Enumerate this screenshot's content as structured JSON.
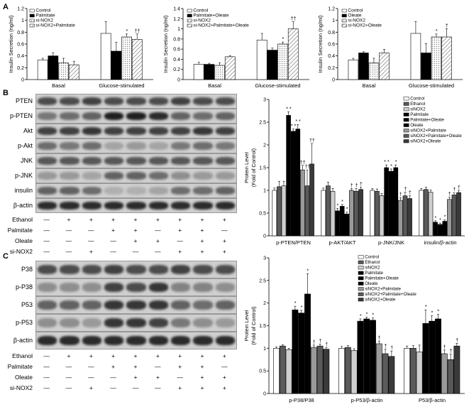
{
  "panel_letters": {
    "a": "A",
    "b": "B",
    "c": "C"
  },
  "colors": {
    "white": "#ffffff",
    "black": "#000000",
    "lightgray": "#cfcfcf",
    "midgray": "#9a9a9a",
    "darkgray": "#5a5a5a",
    "charcoal": "#3a3a3a",
    "hatch": "#8c8c8c",
    "dots": "#808080"
  },
  "chart_data": [
    {
      "id": "A1",
      "type": "bar",
      "ylabel": "Insulin Secretion (ng/ml)",
      "ylim": [
        0,
        1.2
      ],
      "yticks": [
        "0",
        "0.2",
        "0.4",
        "0.6",
        "0.8",
        "1",
        "1.2"
      ],
      "categories": [
        "Basal",
        "Glucose-stimulated"
      ],
      "legend": [
        "Control",
        "Palmitate",
        "si-NOX2",
        "si-NOX2+Palmitate"
      ],
      "series": [
        {
          "name": "Control",
          "values": [
            0.33,
            0.78
          ],
          "err": [
            0.03,
            0.2
          ],
          "fill": "white"
        },
        {
          "name": "Palmitate",
          "values": [
            0.4,
            0.48
          ],
          "err": [
            0.05,
            0.15
          ],
          "fill": "black"
        },
        {
          "name": "si-NOX2",
          "values": [
            0.28,
            0.72
          ],
          "err": [
            0.08,
            0.05
          ],
          "fill": "dots"
        },
        {
          "name": "si-NOX2+Palmitate",
          "values": [
            0.25,
            0.68
          ],
          "err": [
            0.06,
            0.09
          ],
          "fill": "hatch"
        }
      ],
      "annotations": [
        {
          "cat": 1,
          "ser": 2,
          "text": "*"
        },
        {
          "cat": 1,
          "ser": 3,
          "text": "††"
        }
      ]
    },
    {
      "id": "A2",
      "type": "bar",
      "ylabel": "Insulin Secretion (ng/ml)",
      "ylim": [
        0,
        1.4
      ],
      "yticks": [
        "0",
        "0.2",
        "0.4",
        "0.6",
        "0.8",
        "1",
        "1.2",
        "1.4"
      ],
      "categories": [
        "Basal",
        "Glucose-stimulated"
      ],
      "legend": [
        "Control",
        "Palmitate+Oleate",
        "si-NOX2",
        "si-NOX2+Palmitate+Oleate"
      ],
      "series": [
        {
          "name": "Control",
          "values": [
            0.3,
            0.78
          ],
          "err": [
            0.04,
            0.13
          ],
          "fill": "white"
        },
        {
          "name": "Palmitate+Oleate",
          "values": [
            0.3,
            0.58
          ],
          "err": [
            0.02,
            0.04
          ],
          "fill": "black"
        },
        {
          "name": "si-NOX2",
          "values": [
            0.28,
            0.7
          ],
          "err": [
            0.05,
            0.04
          ],
          "fill": "dots"
        },
        {
          "name": "si-NOX2+Palmitate+Oleate",
          "values": [
            0.45,
            1.0
          ],
          "err": [
            0.02,
            0.14
          ],
          "fill": "hatch"
        }
      ],
      "annotations": [
        {
          "cat": 1,
          "ser": 2,
          "text": "*"
        },
        {
          "cat": 1,
          "ser": 3,
          "text": "††"
        }
      ]
    },
    {
      "id": "A3",
      "type": "bar",
      "ylabel": "Insulin Secretion (ng/ml)",
      "ylim": [
        0,
        1.2
      ],
      "yticks": [
        "0",
        "0.2",
        "0.4",
        "0.6",
        "0.8",
        "1",
        "1.2"
      ],
      "categories": [
        "Basal",
        "Glucose-stimulated"
      ],
      "legend": [
        "Control",
        "Oleate",
        "si-NOX2",
        "si-NOX2+Oleate"
      ],
      "series": [
        {
          "name": "Control",
          "values": [
            0.33,
            0.78
          ],
          "err": [
            0.03,
            0.2
          ],
          "fill": "white"
        },
        {
          "name": "Oleate",
          "values": [
            0.45,
            0.45
          ],
          "err": [
            0.02,
            0.16
          ],
          "fill": "black"
        },
        {
          "name": "si-NOX2",
          "values": [
            0.28,
            0.72
          ],
          "err": [
            0.08,
            0.05
          ],
          "fill": "dots"
        },
        {
          "name": "si-NOX2+Oleate",
          "values": [
            0.45,
            0.72
          ],
          "err": [
            0.06,
            0.14
          ],
          "fill": "hatch"
        }
      ],
      "annotations": [
        {
          "cat": 1,
          "ser": 2,
          "text": "*"
        },
        {
          "cat": 1,
          "ser": 3,
          "text": "†"
        }
      ]
    },
    {
      "id": "B",
      "type": "bar",
      "ylabel": "Protein Level\n(Fold of Control)",
      "ylim": [
        0,
        3
      ],
      "yticks": [
        "0",
        "0.5",
        "1",
        "1.5",
        "2",
        "2.5",
        "3"
      ],
      "categories": [
        "p-PTEN/PTEN",
        "p-AKT/AKT",
        "p-JNK/JNK",
        "insulin/β-actin"
      ],
      "legend": [
        "Control",
        "Ethanol",
        "siNOX2",
        "Palmitate",
        "Palmitate+Oleate",
        "Oleate",
        "siNOX2+Palmitate",
        "siNOX2+Palmitate+Oleate",
        "siNOX2+Oleate"
      ],
      "series": [
        {
          "name": "Control",
          "values": [
            1.0,
            1.0,
            1.0,
            1.0
          ],
          "err": [
            0.05,
            0.05,
            0.04,
            0.04
          ],
          "fill": "white"
        },
        {
          "name": "Ethanol",
          "values": [
            1.08,
            1.1,
            0.98,
            1.02
          ],
          "err": [
            0.12,
            0.08,
            0.05,
            0.05
          ],
          "fill": "darkgray"
        },
        {
          "name": "siNOX2",
          "values": [
            1.1,
            0.98,
            0.88,
            0.96
          ],
          "err": [
            0.1,
            0.06,
            0.05,
            0.05
          ],
          "fill": "lightgray"
        },
        {
          "name": "Palmitate",
          "values": [
            2.65,
            0.55,
            1.5,
            0.3
          ],
          "err": [
            0.08,
            0.05,
            0.06,
            0.03
          ],
          "fill": "black"
        },
        {
          "name": "Palmitate+Oleate",
          "values": [
            2.3,
            0.65,
            1.42,
            0.25
          ],
          "err": [
            0.05,
            0.04,
            0.05,
            0.03
          ],
          "fill": "black"
        },
        {
          "name": "Oleate",
          "values": [
            2.35,
            0.48,
            1.5,
            0.32
          ],
          "err": [
            0.1,
            0.04,
            0.06,
            0.03
          ],
          "fill": "black"
        },
        {
          "name": "siNOX2+Palmitate",
          "values": [
            1.45,
            1.0,
            0.78,
            0.8
          ],
          "err": [
            0.1,
            0.04,
            0.06,
            0.05
          ],
          "fill": "midgray"
        },
        {
          "name": "siNOX2+Palmitate+Oleate",
          "values": [
            1.1,
            0.98,
            0.88,
            0.9
          ],
          "err": [
            0.35,
            0.06,
            0.08,
            0.05
          ],
          "fill": "darkgray"
        },
        {
          "name": "siNOX2+Oleate",
          "values": [
            1.58,
            1.02,
            0.82,
            0.95
          ],
          "err": [
            0.45,
            0.05,
            0.06,
            0.05
          ],
          "fill": "charcoal"
        }
      ],
      "annotations": [
        {
          "cat": 0,
          "ser": 3,
          "text": "* *"
        },
        {
          "cat": 0,
          "ser": 4,
          "text": "* *"
        },
        {
          "cat": 0,
          "ser": 5,
          "text": "* *"
        },
        {
          "cat": 0,
          "ser": 6,
          "text": "††"
        },
        {
          "cat": 0,
          "ser": 7,
          "text": "††"
        },
        {
          "cat": 0,
          "ser": 8,
          "text": "††"
        },
        {
          "cat": 1,
          "ser": 3,
          "text": "*"
        },
        {
          "cat": 1,
          "ser": 4,
          "text": "*"
        },
        {
          "cat": 1,
          "ser": 5,
          "text": "*"
        },
        {
          "cat": 1,
          "ser": 6,
          "text": "†"
        },
        {
          "cat": 1,
          "ser": 7,
          "text": "†"
        },
        {
          "cat": 1,
          "ser": 8,
          "text": "†"
        },
        {
          "cat": 2,
          "ser": 3,
          "text": "* *"
        },
        {
          "cat": 2,
          "ser": 4,
          "text": "*"
        },
        {
          "cat": 2,
          "ser": 5,
          "text": "*"
        },
        {
          "cat": 2,
          "ser": 6,
          "text": "†"
        },
        {
          "cat": 2,
          "ser": 7,
          "text": "†"
        },
        {
          "cat": 2,
          "ser": 8,
          "text": "†"
        },
        {
          "cat": 3,
          "ser": 3,
          "text": "*"
        },
        {
          "cat": 3,
          "ser": 4,
          "text": "*"
        },
        {
          "cat": 3,
          "ser": 5,
          "text": "*"
        },
        {
          "cat": 3,
          "ser": 6,
          "text": "†"
        },
        {
          "cat": 3,
          "ser": 7,
          "text": "†"
        },
        {
          "cat": 3,
          "ser": 8,
          "text": "†"
        }
      ]
    },
    {
      "id": "C",
      "type": "bar",
      "ylabel": "Protein Level\n(Fold of Control)",
      "ylim": [
        0,
        3
      ],
      "yticks": [
        "0",
        "0.5",
        "1",
        "1.5",
        "2",
        "2.5",
        "3"
      ],
      "categories": [
        "p-P38/P38",
        "p-P53/β-actin",
        "P53/β-actin"
      ],
      "legend": [
        "Control",
        "Ethanol",
        "siNOX2",
        "Palmitate",
        "Palmitate+Oleate",
        "Oleate",
        "siNOX2+Palmitate",
        "siNOX2+Palmitate+Oleate",
        "siNOX2+Oleate"
      ],
      "series": [
        {
          "name": "Control",
          "values": [
            1.0,
            1.0,
            1.0
          ],
          "err": [
            0.03,
            0.04,
            0.05
          ],
          "fill": "white"
        },
        {
          "name": "Ethanol",
          "values": [
            1.05,
            1.02,
            1.0
          ],
          "err": [
            0.03,
            0.04,
            0.06
          ],
          "fill": "darkgray"
        },
        {
          "name": "siNOX2",
          "values": [
            0.97,
            0.95,
            0.92
          ],
          "err": [
            0.03,
            0.04,
            0.15
          ],
          "fill": "lightgray"
        },
        {
          "name": "Palmitate",
          "values": [
            1.85,
            1.6,
            1.55
          ],
          "err": [
            0.08,
            0.05,
            0.3
          ],
          "fill": "black"
        },
        {
          "name": "Palmitate+Oleate",
          "values": [
            1.78,
            1.65,
            1.6
          ],
          "err": [
            0.06,
            0.04,
            0.12
          ],
          "fill": "black"
        },
        {
          "name": "Oleate",
          "values": [
            2.2,
            1.62,
            1.65
          ],
          "err": [
            0.45,
            0.05,
            0.1
          ],
          "fill": "black"
        },
        {
          "name": "siNOX2+Palmitate",
          "values": [
            1.02,
            1.1,
            0.88
          ],
          "err": [
            0.05,
            0.06,
            0.08
          ],
          "fill": "midgray"
        },
        {
          "name": "siNOX2+Palmitate+Oleate",
          "values": [
            1.05,
            0.88,
            0.75
          ],
          "err": [
            0.04,
            0.1,
            0.12
          ],
          "fill": "darkgray"
        },
        {
          "name": "siNOX2+Oleate",
          "values": [
            0.98,
            0.82,
            1.05
          ],
          "err": [
            0.04,
            0.12,
            0.06
          ],
          "fill": "charcoal"
        }
      ],
      "annotations": [
        {
          "cat": 0,
          "ser": 3,
          "text": "*"
        },
        {
          "cat": 0,
          "ser": 4,
          "text": "*"
        },
        {
          "cat": 0,
          "ser": 5,
          "text": "*"
        },
        {
          "cat": 0,
          "ser": 6,
          "text": "†"
        },
        {
          "cat": 0,
          "ser": 7,
          "text": "†"
        },
        {
          "cat": 0,
          "ser": 8,
          "text": "†"
        },
        {
          "cat": 1,
          "ser": 3,
          "text": "*"
        },
        {
          "cat": 1,
          "ser": 4,
          "text": "*"
        },
        {
          "cat": 1,
          "ser": 5,
          "text": "*"
        },
        {
          "cat": 1,
          "ser": 6,
          "text": "†"
        },
        {
          "cat": 1,
          "ser": 7,
          "text": "†"
        },
        {
          "cat": 1,
          "ser": 8,
          "text": "†"
        },
        {
          "cat": 2,
          "ser": 3,
          "text": "*"
        },
        {
          "cat": 2,
          "ser": 4,
          "text": "*"
        },
        {
          "cat": 2,
          "ser": 5,
          "text": "*"
        },
        {
          "cat": 2,
          "ser": 6,
          "text": "†"
        },
        {
          "cat": 2,
          "ser": 7,
          "text": "†"
        },
        {
          "cat": 2,
          "ser": 8,
          "text": "†"
        }
      ]
    }
  ],
  "blot_b": {
    "labels": [
      "PTEN",
      "p-PTEN",
      "Akt",
      "p-Akt",
      "JNK",
      "p-JNK",
      "insulin",
      "β-actin"
    ],
    "intensity": [
      [
        0.7,
        0.7,
        0.75,
        0.7,
        0.7,
        0.7,
        0.75,
        0.7,
        0.7
      ],
      [
        0.5,
        0.55,
        0.6,
        0.9,
        0.9,
        0.85,
        0.6,
        0.55,
        0.6
      ],
      [
        0.75,
        0.75,
        0.8,
        0.75,
        0.75,
        0.75,
        0.75,
        0.8,
        0.75
      ],
      [
        0.55,
        0.5,
        0.55,
        0.3,
        0.35,
        0.3,
        0.5,
        0.55,
        0.5
      ],
      [
        0.65,
        0.65,
        0.65,
        0.65,
        0.65,
        0.65,
        0.65,
        0.65,
        0.65
      ],
      [
        0.35,
        0.35,
        0.3,
        0.6,
        0.6,
        0.55,
        0.4,
        0.35,
        0.35
      ],
      [
        0.6,
        0.6,
        0.55,
        0.25,
        0.25,
        0.3,
        0.55,
        0.55,
        0.6
      ],
      [
        0.85,
        0.85,
        0.85,
        0.85,
        0.85,
        0.85,
        0.85,
        0.85,
        0.85
      ]
    ],
    "treatments": [
      {
        "name": "Ethanol",
        "symbols": [
          "—",
          "+",
          "+",
          "+",
          "+",
          "+",
          "+",
          "+",
          "+"
        ]
      },
      {
        "name": "Palmitate",
        "symbols": [
          "—",
          "—",
          "—",
          "+",
          "+",
          "—",
          "+",
          "+",
          "—"
        ]
      },
      {
        "name": "Oleate",
        "symbols": [
          "—",
          "—",
          "—",
          "—",
          "+",
          "+",
          "—",
          "+",
          "+"
        ]
      },
      {
        "name": "si-NOX2",
        "symbols": [
          "—",
          "—",
          "+",
          "—",
          "—",
          "—",
          "+",
          "+",
          "+"
        ]
      }
    ]
  },
  "blot_c": {
    "labels": [
      "P38",
      "p-P38",
      "P53",
      "p-P53",
      "β-actin"
    ],
    "intensity": [
      [
        0.7,
        0.7,
        0.7,
        0.75,
        0.7,
        0.7,
        0.75,
        0.7,
        0.7
      ],
      [
        0.4,
        0.4,
        0.4,
        0.75,
        0.7,
        0.8,
        0.45,
        0.45,
        0.4
      ],
      [
        0.6,
        0.6,
        0.6,
        0.8,
        0.8,
        0.8,
        0.6,
        0.55,
        0.6
      ],
      [
        0.4,
        0.4,
        0.35,
        0.8,
        0.8,
        0.75,
        0.5,
        0.4,
        0.35
      ],
      [
        0.85,
        0.85,
        0.85,
        0.85,
        0.85,
        0.85,
        0.85,
        0.85,
        0.85
      ]
    ],
    "treatments": [
      {
        "name": "Ethanol",
        "symbols": [
          "—",
          "+",
          "+",
          "+",
          "+",
          "+",
          "+",
          "+",
          "+"
        ]
      },
      {
        "name": "Palmitate",
        "symbols": [
          "—",
          "—",
          "—",
          "+",
          "+",
          "—",
          "+",
          "+",
          "—"
        ]
      },
      {
        "name": "Oleate",
        "symbols": [
          "—",
          "—",
          "—",
          "—",
          "+",
          "+",
          "—",
          "+",
          "+"
        ]
      },
      {
        "name": "si-NOX2",
        "symbols": [
          "—",
          "—",
          "+",
          "—",
          "—",
          "—",
          "+",
          "+",
          "+"
        ]
      }
    ]
  }
}
